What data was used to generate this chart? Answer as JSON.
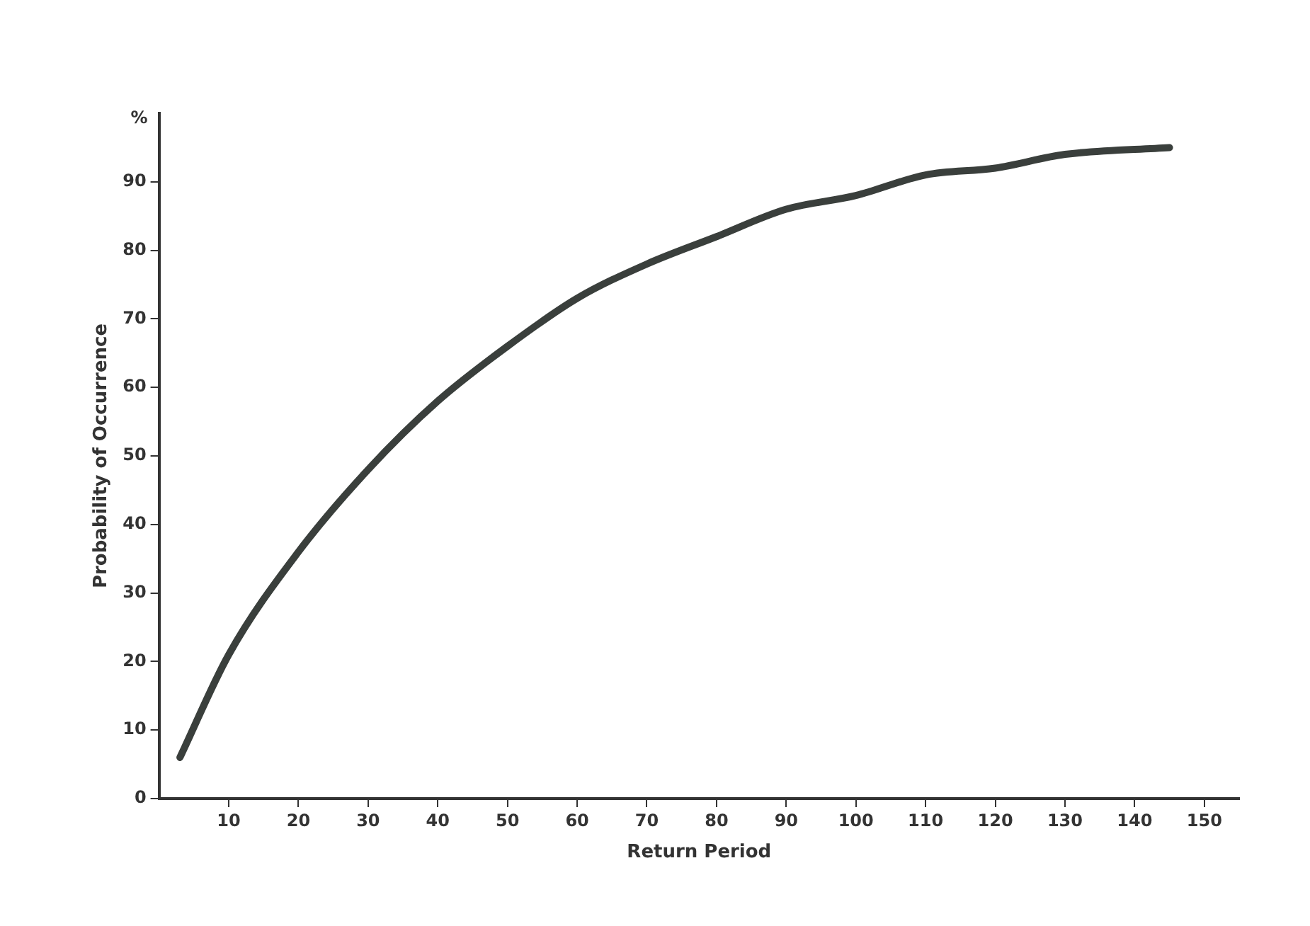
{
  "chart_data": {
    "type": "line",
    "xlabel": "Return Period",
    "ylabel": "Probability of Occurrence",
    "annotations": [
      "%"
    ],
    "x": [
      3,
      10,
      20,
      30,
      40,
      50,
      60,
      70,
      80,
      90,
      100,
      110,
      120,
      130,
      145
    ],
    "series": [
      {
        "color": "#3a3f3c",
        "values": [
          6,
          21,
          36,
          48,
          58,
          66,
          73,
          78,
          82,
          86,
          88,
          91,
          92,
          94,
          95
        ]
      }
    ],
    "xlim": [
      0,
      155
    ],
    "xticks": [
      10,
      20,
      30,
      40,
      50,
      60,
      70,
      80,
      90,
      100,
      110,
      120,
      130,
      140,
      150
    ],
    "ylim": [
      0,
      100
    ],
    "yticks": [
      0,
      10,
      20,
      30,
      40,
      50,
      60,
      70,
      80,
      90
    ],
    "grid": false,
    "legend": false,
    "marker": "none",
    "line_style": "solid"
  }
}
